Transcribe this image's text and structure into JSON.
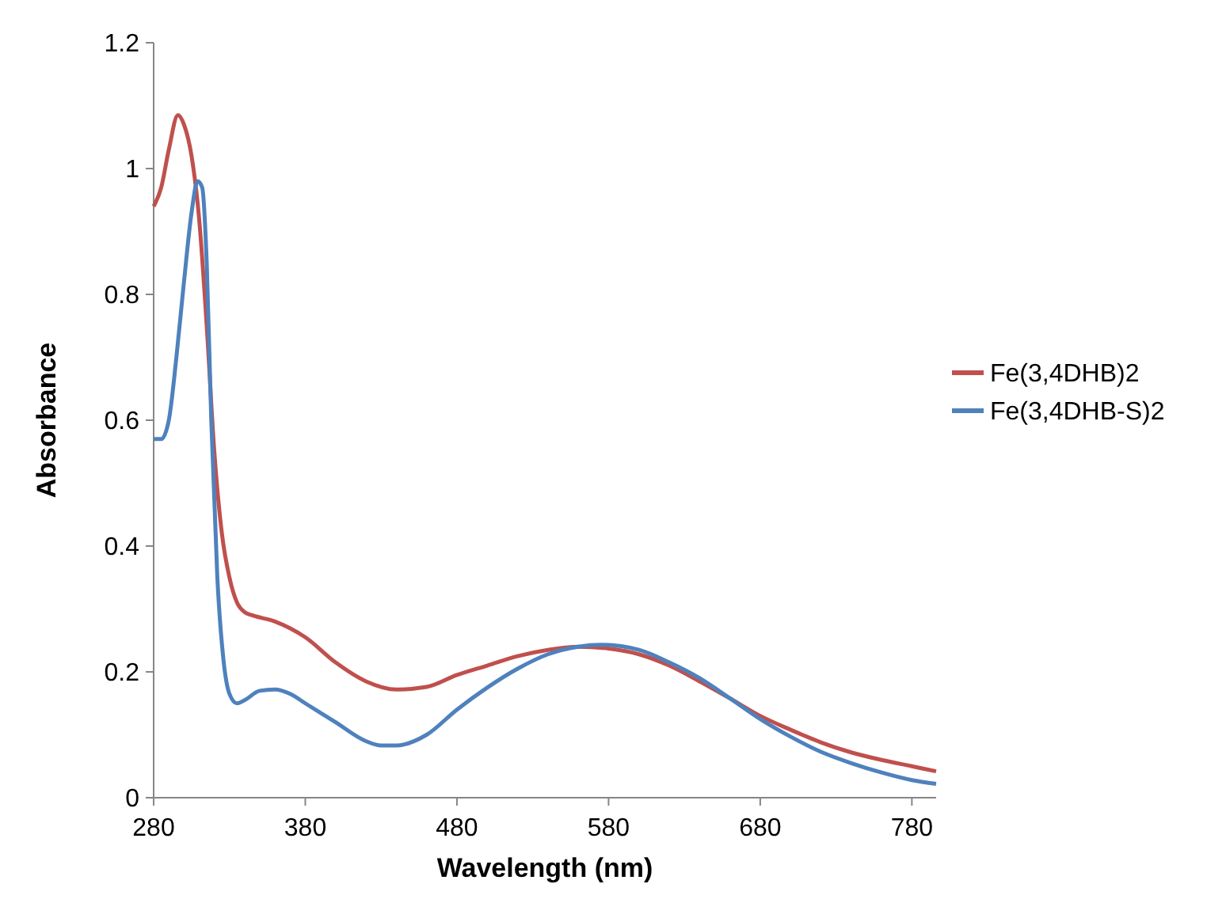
{
  "chart_data": {
    "type": "line",
    "xlabel": "Wavelength (nm)",
    "ylabel": "Absorbance",
    "xlim": [
      280,
      796
    ],
    "xticks": [
      280,
      380,
      480,
      580,
      680,
      780
    ],
    "ylim": [
      0,
      1.2
    ],
    "yticks": [
      0,
      0.2,
      0.4,
      0.6,
      0.8,
      1,
      1.2
    ],
    "grid": false,
    "legend": "right",
    "marker": "none",
    "line_style": "solid",
    "series": [
      {
        "name": "Fe(3,4DHB)2",
        "color": "#c0504d",
        "x": [
          280,
          285,
          290,
          296,
          300,
          305,
          310,
          315,
          320,
          325,
          330,
          335,
          340,
          345,
          360,
          380,
          400,
          420,
          440,
          460,
          480,
          500,
          520,
          540,
          560,
          580,
          600,
          620,
          640,
          660,
          680,
          700,
          720,
          740,
          760,
          780,
          796
        ],
        "values": [
          0.94,
          0.97,
          1.03,
          1.085,
          1.07,
          1.02,
          0.92,
          0.75,
          0.55,
          0.42,
          0.35,
          0.31,
          0.295,
          0.29,
          0.28,
          0.255,
          0.215,
          0.185,
          0.172,
          0.176,
          0.195,
          0.21,
          0.225,
          0.235,
          0.24,
          0.237,
          0.228,
          0.21,
          0.185,
          0.158,
          0.13,
          0.108,
          0.088,
          0.072,
          0.06,
          0.05,
          0.042
        ]
      },
      {
        "name": "Fe(3,4DHB-S)2",
        "color": "#4f81bd",
        "x": [
          280,
          285,
          290,
          295,
          300,
          305,
          309,
          312,
          315,
          318,
          322,
          326,
          330,
          335,
          340,
          350,
          360,
          370,
          380,
          400,
          420,
          430,
          440,
          460,
          480,
          500,
          520,
          540,
          560,
          575,
          600,
          620,
          640,
          660,
          680,
          700,
          720,
          740,
          760,
          780,
          796
        ],
        "values": [
          0.57,
          0.57,
          0.6,
          0.7,
          0.82,
          0.93,
          0.98,
          0.97,
          0.85,
          0.6,
          0.35,
          0.22,
          0.165,
          0.15,
          0.155,
          0.17,
          0.172,
          0.165,
          0.15,
          0.12,
          0.09,
          0.083,
          0.083,
          0.1,
          0.14,
          0.175,
          0.205,
          0.228,
          0.24,
          0.243,
          0.235,
          0.215,
          0.19,
          0.158,
          0.125,
          0.097,
          0.073,
          0.055,
          0.04,
          0.028,
          0.022
        ]
      }
    ]
  }
}
